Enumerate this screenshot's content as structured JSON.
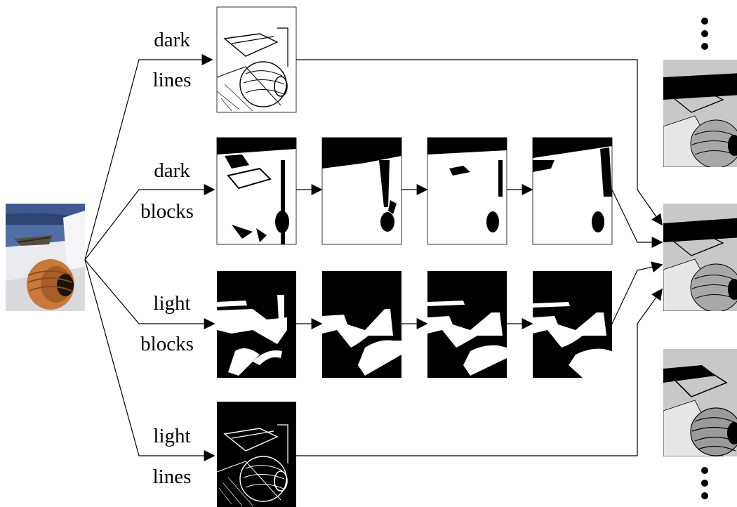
{
  "rows": [
    {
      "top": "dark",
      "bottom": "lines"
    },
    {
      "top": "dark",
      "bottom": "blocks"
    },
    {
      "top": "light",
      "bottom": "blocks"
    },
    {
      "top": "light",
      "bottom": "lines"
    }
  ],
  "colors": {
    "ink": "#000000",
    "paper": "#ffffff",
    "output_gray": "#c8c8c8",
    "sky_blue": "#3f5a92",
    "pot_orange": "#c87a3c"
  }
}
